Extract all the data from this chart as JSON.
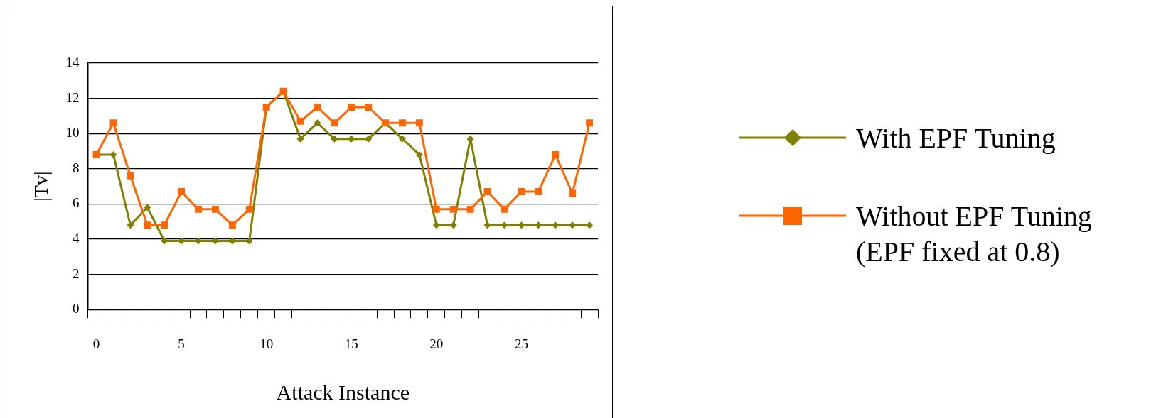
{
  "chart_data": {
    "type": "line",
    "xlabel": "Attack Instance",
    "ylabel": "|Tv|",
    "categories": [
      "0",
      null,
      null,
      null,
      null,
      "5",
      null,
      null,
      null,
      null,
      "10",
      null,
      null,
      null,
      null,
      "15",
      null,
      null,
      null,
      null,
      "20",
      null,
      null,
      null,
      null,
      "25",
      null,
      null,
      null,
      null
    ],
    "series": [
      {
        "name": "With EPF Tuning",
        "color": "#808000",
        "marker": "diamond",
        "values": [
          8.8,
          8.8,
          4.8,
          5.8,
          3.9,
          3.9,
          3.9,
          3.9,
          3.9,
          3.9,
          11.5,
          12.4,
          9.7,
          10.6,
          9.7,
          9.7,
          9.7,
          10.6,
          9.7,
          8.8,
          4.8,
          4.8,
          9.7,
          4.8,
          4.8,
          4.8,
          4.8,
          4.8,
          4.8,
          4.8
        ]
      },
      {
        "name": "Without EPF Tuning (EPF fixed at 0.8)",
        "color": "#ff6600",
        "marker": "square",
        "values": [
          8.8,
          10.6,
          7.6,
          4.8,
          4.8,
          6.7,
          5.7,
          5.7,
          4.8,
          5.7,
          11.5,
          12.4,
          10.7,
          11.5,
          10.6,
          11.5,
          11.5,
          10.6,
          10.6,
          10.6,
          5.7,
          5.7,
          5.7,
          6.7,
          5.7,
          6.7,
          6.7,
          8.8,
          6.6,
          10.6
        ]
      }
    ],
    "ylim": [
      0,
      14
    ],
    "yticks": [
      0,
      2,
      4,
      6,
      8,
      10,
      12,
      14
    ],
    "grid": "y",
    "legend": "right"
  }
}
